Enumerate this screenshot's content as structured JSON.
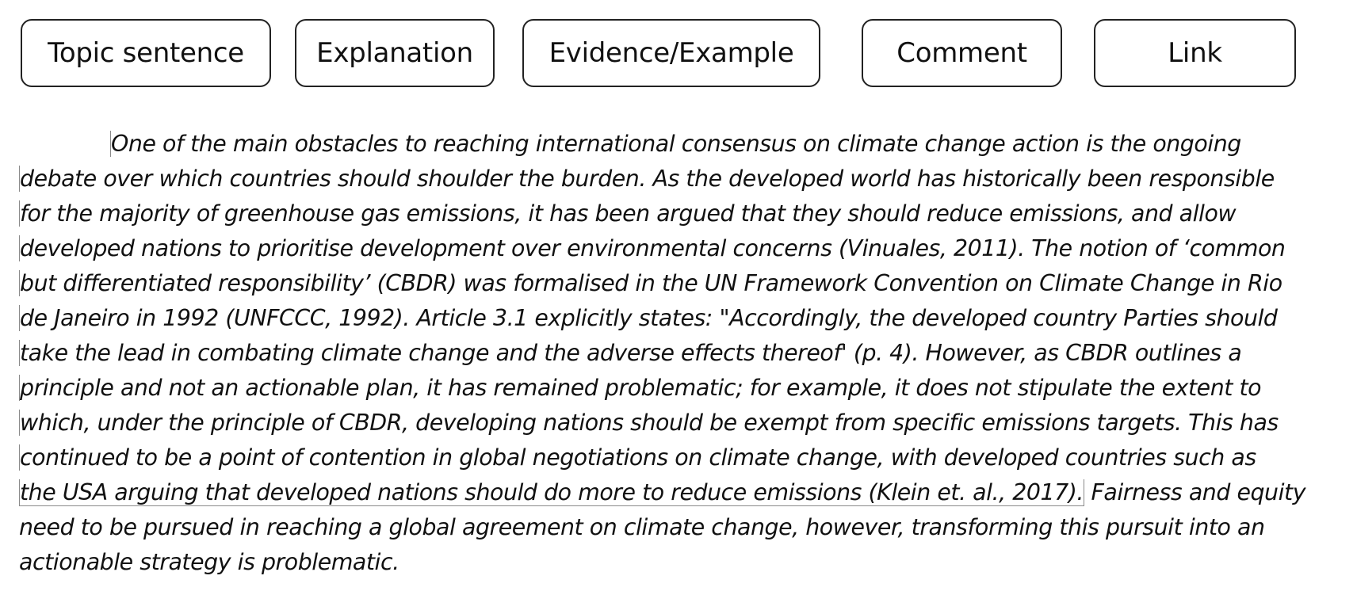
{
  "labels": {
    "topic": "Topic sentence",
    "explanation": "Explanation",
    "evidence": "Evidence/Example",
    "comment": "Comment",
    "link": "Link"
  },
  "paragraph": {
    "lines": [
      "One of the main obstacles to reaching international consensus on climate change action is the ongoing",
      "debate over which countries should shoulder the burden. As the developed world has historically been responsible",
      "for the majority of greenhouse gas emissions, it has been argued that they should reduce emissions, and allow",
      "developed nations to prioritise development over environmental concerns (Vinuales, 2011). The notion of ‘common",
      "but differentiated responsibility’ (CBDR) was formalised in the UN Framework Convention on Climate Change in Rio",
      "de Janeiro in 1992 (UNFCCC, 1992). Article 3.1 explicitly states: \"Accordingly, the developed country Parties should",
      "take the lead in combating climate change and the adverse effects thereof' (p. 4). However, as CBDR outlines a",
      "principle and not an actionable plan, it has remained problematic; for example, it does not stipulate the extent to",
      "which, under the principle of CBDR, developing nations should be exempt from specific emissions targets. This has",
      "continued to be a point of contention in global negotiations on climate change, with developed countries such as",
      "the USA arguing that developed nations should do more to reduce emissions (Klein et. al., 2017).",
      " Fairness and equity",
      "need to be pursued in reaching a global agreement on climate change, however, transforming this pursuit into an",
      "actionable strategy is problematic."
    ]
  }
}
